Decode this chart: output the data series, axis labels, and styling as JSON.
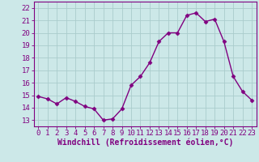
{
  "x": [
    0,
    1,
    2,
    3,
    4,
    5,
    6,
    7,
    8,
    9,
    10,
    11,
    12,
    13,
    14,
    15,
    16,
    17,
    18,
    19,
    20,
    21,
    22,
    23
  ],
  "y": [
    14.9,
    14.7,
    14.3,
    14.8,
    14.5,
    14.1,
    13.9,
    13.0,
    13.1,
    13.9,
    15.8,
    16.5,
    17.6,
    19.3,
    20.0,
    20.0,
    21.4,
    21.6,
    20.9,
    21.1,
    19.3,
    16.5,
    15.3,
    14.6
  ],
  "line_color": "#800080",
  "marker": "D",
  "marker_size": 2.5,
  "bg_color": "#cce8e8",
  "grid_color": "#aacccc",
  "xlabel": "Windchill (Refroidissement éolien,°C)",
  "ylabel": "",
  "xlim": [
    -0.5,
    23.5
  ],
  "ylim": [
    12.5,
    22.5
  ],
  "yticks": [
    13,
    14,
    15,
    16,
    17,
    18,
    19,
    20,
    21,
    22
  ],
  "xticks": [
    0,
    1,
    2,
    3,
    4,
    5,
    6,
    7,
    8,
    9,
    10,
    11,
    12,
    13,
    14,
    15,
    16,
    17,
    18,
    19,
    20,
    21,
    22,
    23
  ],
  "label_color": "#800080",
  "tick_color": "#800080",
  "spine_color": "#800080",
  "line_width": 1.0,
  "xlabel_fontsize": 7.0,
  "tick_fontsize": 6.5
}
